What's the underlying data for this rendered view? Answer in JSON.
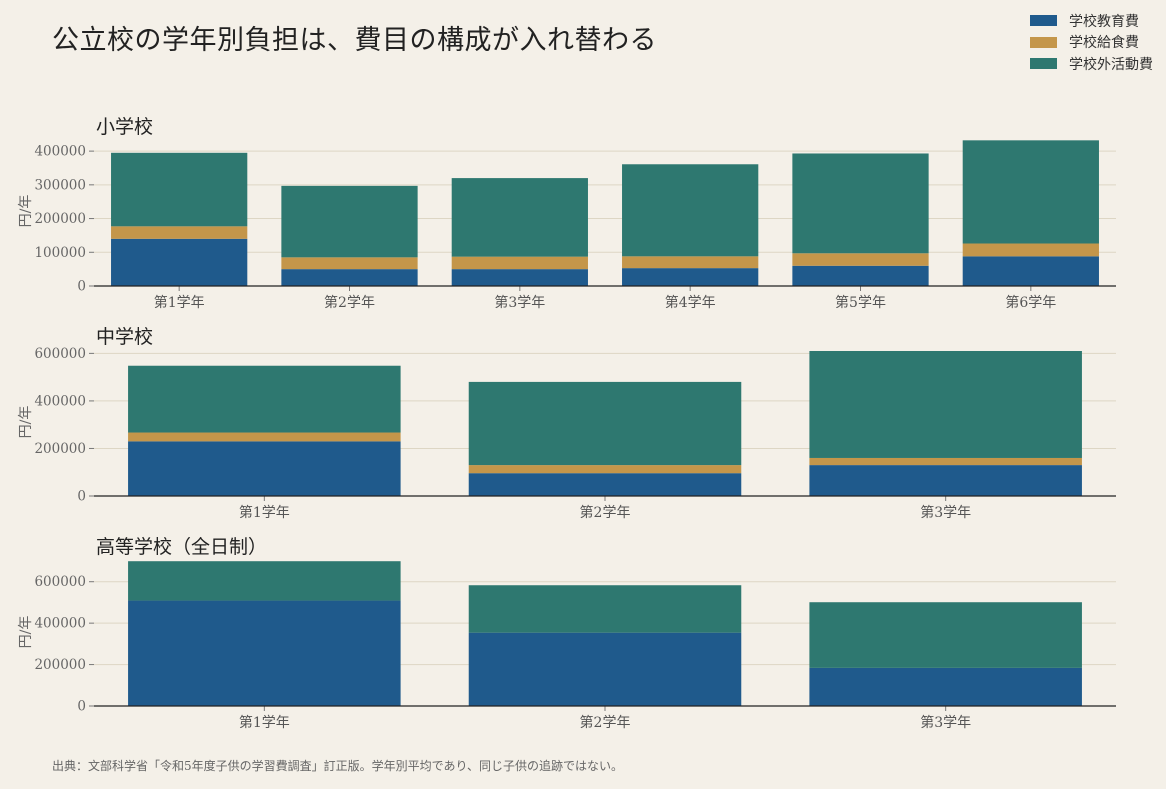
{
  "title": "公立校の学年別負担は、費目の構成が入れ替わる",
  "source": "出典：文部科学省「令和5年度子供の学習費調査」訂正版。学年別平均であり、同じ子供の追跡ではない。",
  "legend": [
    {
      "label": "学校教育費",
      "color": "#1f5a8c"
    },
    {
      "label": "学校給食費",
      "color": "#c4964a"
    },
    {
      "label": "学校外活動費",
      "color": "#2e7870"
    }
  ],
  "chart_data": [
    {
      "type": "bar",
      "stacked": true,
      "title": "小学校",
      "ylabel": "円/年",
      "ylim": [
        0,
        430000
      ],
      "yticks": [
        0,
        100000,
        200000,
        300000,
        400000
      ],
      "grid": true,
      "categories": [
        "第1学年",
        "第2学年",
        "第3学年",
        "第4学年",
        "第5学年",
        "第6学年"
      ],
      "series": [
        {
          "name": "学校教育費",
          "values": [
            140000,
            50000,
            50000,
            53000,
            60000,
            88000
          ]
        },
        {
          "name": "学校給食費",
          "values": [
            37000,
            35000,
            37000,
            35000,
            37000,
            38000
          ]
        },
        {
          "name": "学校外活動費",
          "values": [
            218000,
            212000,
            233000,
            273000,
            296000,
            306000
          ]
        }
      ]
    },
    {
      "type": "bar",
      "stacked": true,
      "title": "中学校",
      "ylabel": "円/年",
      "ylim": [
        0,
        610000
      ],
      "yticks": [
        0,
        200000,
        400000,
        600000
      ],
      "grid": true,
      "categories": [
        "第1学年",
        "第2学年",
        "第3学年"
      ],
      "series": [
        {
          "name": "学校教育費",
          "values": [
            230000,
            96000,
            130000
          ]
        },
        {
          "name": "学校給食費",
          "values": [
            37000,
            34000,
            30000
          ]
        },
        {
          "name": "学校外活動費",
          "values": [
            281000,
            350000,
            450000
          ]
        }
      ]
    },
    {
      "type": "bar",
      "stacked": true,
      "title": "高等学校（全日制）",
      "ylabel": "円/年",
      "ylim": [
        0,
        700000
      ],
      "yticks": [
        0,
        200000,
        400000,
        600000
      ],
      "grid": true,
      "categories": [
        "第1学年",
        "第2学年",
        "第3学年"
      ],
      "series": [
        {
          "name": "学校教育費",
          "values": [
            509000,
            354000,
            184000
          ]
        },
        {
          "name": "学校給食費",
          "values": [
            0,
            0,
            0
          ]
        },
        {
          "name": "学校外活動費",
          "values": [
            190000,
            229000,
            317000
          ]
        }
      ]
    }
  ]
}
